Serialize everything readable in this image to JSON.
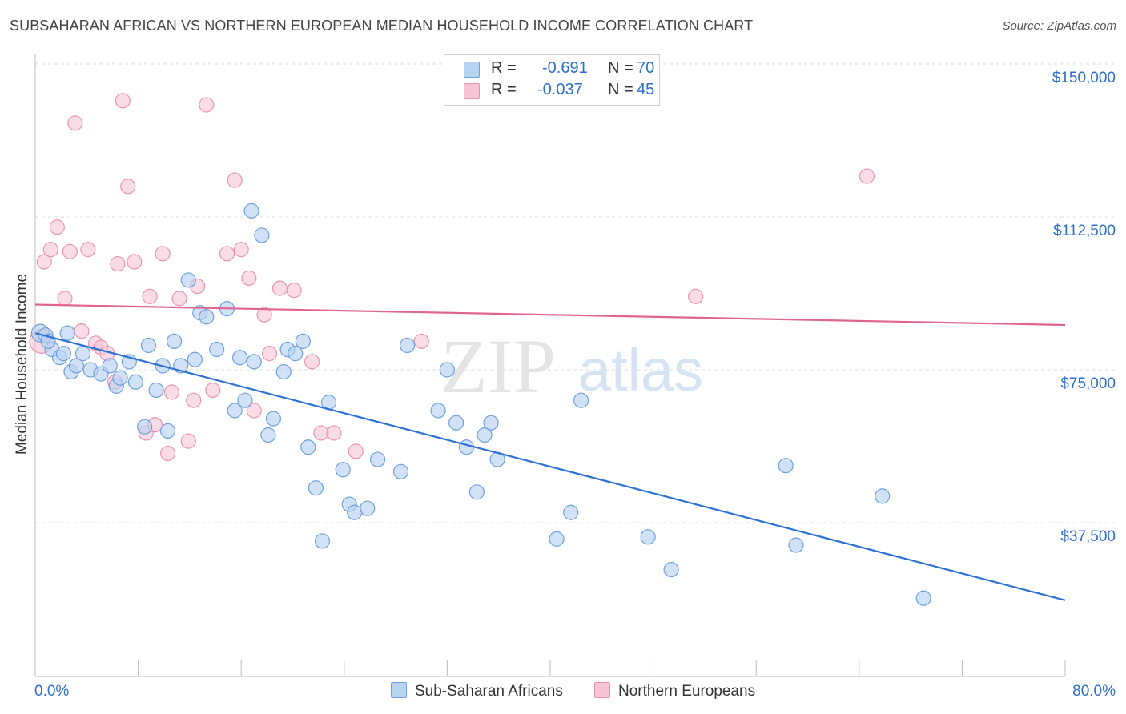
{
  "title": "SUBSAHARAN AFRICAN VS NORTHERN EUROPEAN MEDIAN HOUSEHOLD INCOME CORRELATION CHART",
  "source": "Source: ZipAtlas.com",
  "watermark": {
    "zip": "ZIP",
    "atlas": "atlas"
  },
  "legend_top": {
    "rows": [
      {
        "r_label": "R =",
        "r_value": "-0.691",
        "n_label": "N =",
        "n_value": "70"
      },
      {
        "r_label": "R =",
        "r_value": "-0.037",
        "n_label": "N =",
        "n_value": "45"
      }
    ]
  },
  "legend_bottom": {
    "blue": "Sub-Saharan Africans",
    "pink": "Northern Europeans"
  },
  "colors": {
    "blue_fill": "#b8d2f2",
    "blue_stroke": "#6f9fdc",
    "blue_line": "#2d72d2",
    "pink_fill": "#f7c4d5",
    "pink_stroke": "#e994b2",
    "pink_line": "#e0648e",
    "axis_label": "#2d6fcc"
  },
  "chart_data": {
    "type": "scatter",
    "title": "SUBSAHARAN AFRICAN VS NORTHERN EUROPEAN MEDIAN HOUSEHOLD INCOME CORRELATION CHART",
    "xlabel": "",
    "ylabel": "Median Household Income",
    "xlim": [
      0,
      80
    ],
    "ylim": [
      0,
      155000
    ],
    "x_tick_labels": [
      "0.0%",
      "80.0%"
    ],
    "y_ticks": [
      37500,
      75000,
      112500,
      150000
    ],
    "y_tick_labels": [
      "$37,500",
      "$75,000",
      "$112,500",
      "$150,000"
    ],
    "grid": true,
    "legend_position": "top-center",
    "series": [
      {
        "name": "Sub-Saharan Africans",
        "color": "#b8d2f2",
        "r": -0.691,
        "n": 70,
        "trend": [
          [
            0,
            84000
          ],
          [
            80,
            18500
          ]
        ],
        "points": [
          [
            0.4,
            84000
          ],
          [
            0.8,
            83500
          ],
          [
            1.3,
            80000
          ],
          [
            1.9,
            78000
          ],
          [
            2.2,
            79000
          ],
          [
            2.8,
            74500
          ],
          [
            3.2,
            76000
          ],
          [
            3.7,
            79000
          ],
          [
            4.3,
            75000
          ],
          [
            5.1,
            74000
          ],
          [
            5.8,
            76000
          ],
          [
            6.3,
            71000
          ],
          [
            6.6,
            73000
          ],
          [
            7.3,
            77000
          ],
          [
            7.8,
            72000
          ],
          [
            8.5,
            61000
          ],
          [
            8.8,
            81000
          ],
          [
            9.4,
            70000
          ],
          [
            9.9,
            76000
          ],
          [
            10.3,
            60000
          ],
          [
            10.8,
            82000
          ],
          [
            11.3,
            76000
          ],
          [
            11.9,
            97000
          ],
          [
            12.4,
            77500
          ],
          [
            12.8,
            89000
          ],
          [
            13.3,
            88000
          ],
          [
            14.1,
            80000
          ],
          [
            14.9,
            90000
          ],
          [
            15.5,
            65000
          ],
          [
            15.9,
            78000
          ],
          [
            16.3,
            67500
          ],
          [
            16.8,
            114000
          ],
          [
            17.0,
            77000
          ],
          [
            17.6,
            108000
          ],
          [
            18.1,
            59000
          ],
          [
            18.5,
            63000
          ],
          [
            19.3,
            74500
          ],
          [
            19.6,
            80000
          ],
          [
            20.2,
            79000
          ],
          [
            20.8,
            82000
          ],
          [
            21.2,
            56000
          ],
          [
            21.8,
            46000
          ],
          [
            22.3,
            33000
          ],
          [
            22.8,
            67000
          ],
          [
            23.9,
            50500
          ],
          [
            24.4,
            42000
          ],
          [
            24.8,
            40000
          ],
          [
            25.8,
            41000
          ],
          [
            26.6,
            53000
          ],
          [
            28.4,
            50000
          ],
          [
            28.9,
            81000
          ],
          [
            31.3,
            65000
          ],
          [
            32.0,
            75000
          ],
          [
            32.7,
            62000
          ],
          [
            33.5,
            56000
          ],
          [
            34.3,
            45000
          ],
          [
            34.9,
            59000
          ],
          [
            35.4,
            62000
          ],
          [
            35.9,
            53000
          ],
          [
            40.5,
            33500
          ],
          [
            41.6,
            40000
          ],
          [
            42.4,
            67500
          ],
          [
            47.6,
            34000
          ],
          [
            49.4,
            26000
          ],
          [
            58.3,
            51500
          ],
          [
            59.1,
            32000
          ],
          [
            65.8,
            44000
          ],
          [
            69.0,
            19000
          ],
          [
            1.0,
            82000
          ],
          [
            2.5,
            84000
          ]
        ]
      },
      {
        "name": "Northern Europeans",
        "color": "#f7c4d5",
        "r": -0.037,
        "n": 45,
        "trend": [
          [
            0,
            91000
          ],
          [
            80,
            86000
          ]
        ],
        "points": [
          [
            0.5,
            82000
          ],
          [
            0.7,
            101500
          ],
          [
            1.2,
            104500
          ],
          [
            1.7,
            110000
          ],
          [
            2.3,
            92500
          ],
          [
            2.7,
            104000
          ],
          [
            3.1,
            135500
          ],
          [
            3.6,
            84500
          ],
          [
            4.1,
            104500
          ],
          [
            4.7,
            81500
          ],
          [
            5.1,
            80500
          ],
          [
            5.6,
            79000
          ],
          [
            6.2,
            72000
          ],
          [
            6.4,
            101000
          ],
          [
            6.8,
            141000
          ],
          [
            7.2,
            120000
          ],
          [
            7.7,
            101500
          ],
          [
            8.6,
            59500
          ],
          [
            8.9,
            93000
          ],
          [
            9.3,
            61500
          ],
          [
            9.9,
            103500
          ],
          [
            10.3,
            54500
          ],
          [
            10.6,
            69500
          ],
          [
            11.2,
            92500
          ],
          [
            11.9,
            57500
          ],
          [
            12.3,
            67500
          ],
          [
            12.6,
            95500
          ],
          [
            13.3,
            140000
          ],
          [
            13.8,
            70000
          ],
          [
            14.9,
            103500
          ],
          [
            15.5,
            121500
          ],
          [
            16.0,
            104500
          ],
          [
            16.6,
            97500
          ],
          [
            17.0,
            65000
          ],
          [
            17.8,
            88500
          ],
          [
            18.2,
            79000
          ],
          [
            19.0,
            95000
          ],
          [
            20.1,
            94500
          ],
          [
            21.5,
            77000
          ],
          [
            22.2,
            59500
          ],
          [
            23.2,
            59500
          ],
          [
            24.9,
            55000
          ],
          [
            30.0,
            82000
          ],
          [
            51.3,
            93000
          ],
          [
            64.6,
            122500
          ]
        ]
      }
    ]
  }
}
